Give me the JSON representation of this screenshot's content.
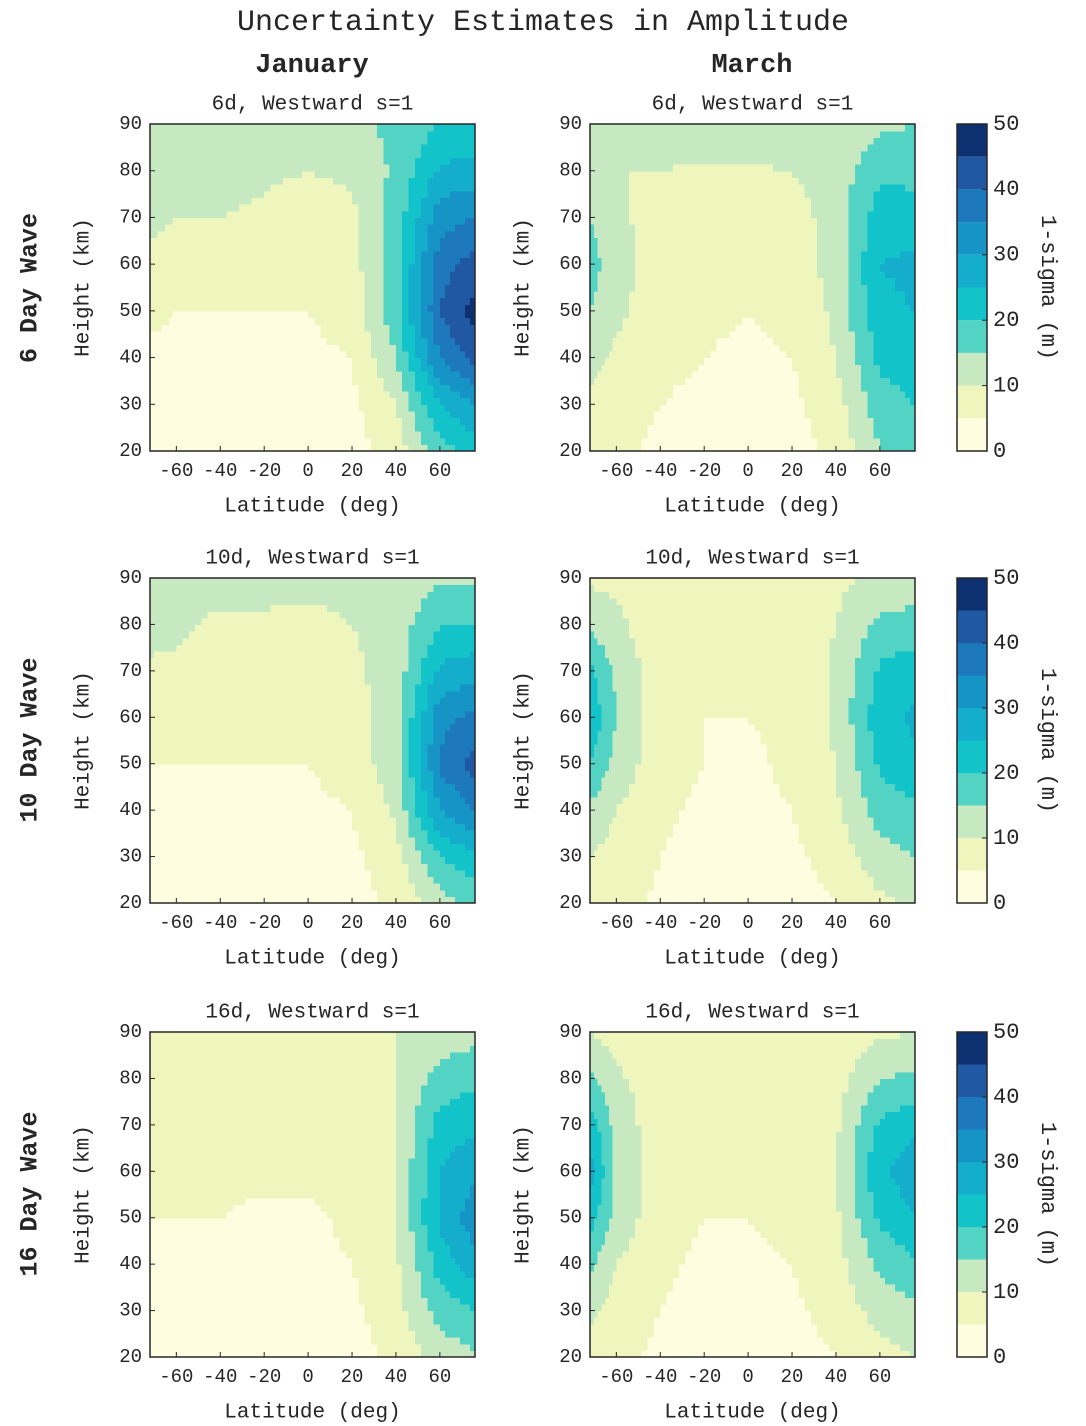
{
  "title": "Uncertainty Estimates in Amplitude",
  "column_titles": [
    "January",
    "March"
  ],
  "row_titles": [
    "6 Day Wave",
    "10 Day Wave",
    "16 Day Wave"
  ],
  "colormap": {
    "levels": [
      0,
      5,
      10,
      15,
      20,
      25,
      30,
      35,
      40,
      45,
      50
    ],
    "colors": [
      "#fefde0",
      "#eef6bd",
      "#c6e9c2",
      "#52d3c3",
      "#12c4c9",
      "#14adcc",
      "#1694c6",
      "#1e78bc",
      "#2158a4",
      "#0d3070"
    ]
  },
  "chart_data": [
    {
      "type": "contour",
      "title": "6d, Westward s=1",
      "xlabel": "Latitude (deg)",
      "ylabel": "Height (km)",
      "xlim": [
        -72,
        76
      ],
      "ylim": [
        20,
        90
      ],
      "xticks": [
        -60,
        -40,
        -20,
        0,
        20,
        40,
        60
      ],
      "yticks": [
        20,
        30,
        40,
        50,
        60,
        70,
        80,
        90
      ],
      "x": [
        -72,
        -60,
        -40,
        -20,
        0,
        20,
        40,
        60,
        76
      ],
      "y": [
        20,
        30,
        40,
        50,
        60,
        70,
        80,
        90
      ],
      "z": [
        [
          2,
          2,
          2,
          2,
          2,
          3,
          7,
          18,
          22
        ],
        [
          3,
          3,
          3,
          3,
          3,
          4,
          10,
          25,
          30
        ],
        [
          4,
          4,
          4,
          4,
          4,
          5,
          15,
          35,
          42
        ],
        [
          6,
          5,
          5,
          5,
          5,
          7,
          18,
          40,
          47
        ],
        [
          9,
          8,
          8,
          7,
          6,
          8,
          18,
          38,
          42
        ],
        [
          11,
          10,
          10,
          9,
          7,
          9,
          17,
          33,
          35
        ],
        [
          13,
          12,
          12,
          11,
          10,
          11,
          16,
          26,
          27
        ],
        [
          15,
          14,
          14,
          14,
          13,
          14,
          16,
          20,
          21
        ]
      ]
    },
    {
      "type": "contour",
      "title": "6d, Westward s=1",
      "xlabel": "Latitude (deg)",
      "ylabel": "Height (km)",
      "xlim": [
        -72,
        76
      ],
      "ylim": [
        20,
        90
      ],
      "xticks": [
        -60,
        -40,
        -20,
        0,
        20,
        40,
        60
      ],
      "yticks": [
        20,
        30,
        40,
        50,
        60,
        70,
        80,
        90
      ],
      "x": [
        -72,
        -60,
        -40,
        -20,
        0,
        20,
        40,
        60,
        76
      ],
      "y": [
        20,
        30,
        40,
        50,
        60,
        70,
        80,
        90
      ],
      "z": [
        [
          7,
          6,
          4,
          3,
          3,
          3,
          6,
          15,
          17
        ],
        [
          9,
          7,
          5,
          4,
          3,
          4,
          8,
          18,
          20
        ],
        [
          12,
          9,
          6,
          5,
          4,
          5,
          10,
          21,
          22
        ],
        [
          15,
          11,
          7,
          6,
          5,
          6,
          11,
          24,
          25
        ],
        [
          17,
          12,
          8,
          7,
          6,
          7,
          12,
          25,
          26
        ],
        [
          15,
          11,
          8,
          8,
          7,
          8,
          12,
          23,
          23
        ],
        [
          12,
          10,
          10,
          9,
          9,
          10,
          12,
          19,
          18
        ],
        [
          12,
          13,
          14,
          14,
          15,
          15,
          12,
          14,
          15
        ]
      ],
      "colorbar": {
        "label": "1-sigma (m)",
        "lim": [
          0,
          50
        ],
        "ticks": [
          0,
          10,
          20,
          30,
          40,
          50
        ]
      }
    },
    {
      "type": "contour",
      "title": "10d, Westward s=1",
      "xlabel": "Latitude (deg)",
      "ylabel": "Height (km)",
      "xlim": [
        -72,
        76
      ],
      "ylim": [
        20,
        90
      ],
      "xticks": [
        -60,
        -40,
        -20,
        0,
        20,
        40,
        60
      ],
      "yticks": [
        20,
        30,
        40,
        50,
        60,
        70,
        80,
        90
      ],
      "x": [
        -72,
        -60,
        -40,
        -20,
        0,
        20,
        40,
        60,
        76
      ],
      "y": [
        20,
        30,
        40,
        50,
        60,
        70,
        80,
        90
      ],
      "z": [
        [
          2,
          2,
          2,
          2,
          2,
          3,
          6,
          13,
          16
        ],
        [
          3,
          3,
          3,
          3,
          3,
          4,
          8,
          20,
          24
        ],
        [
          4,
          4,
          4,
          4,
          4,
          5,
          11,
          30,
          35
        ],
        [
          5,
          5,
          5,
          5,
          5,
          7,
          13,
          36,
          42
        ],
        [
          7,
          7,
          7,
          7,
          6,
          8,
          13,
          33,
          37
        ],
        [
          9,
          9,
          8,
          8,
          7,
          9,
          12,
          26,
          28
        ],
        [
          12,
          11,
          9,
          9,
          8,
          10,
          12,
          20,
          20
        ],
        [
          13,
          12,
          12,
          12,
          12,
          12,
          12,
          14,
          14
        ]
      ]
    },
    {
      "type": "contour",
      "title": "10d, Westward s=1",
      "xlabel": "Latitude (deg)",
      "ylabel": "Height (km)",
      "xlim": [
        -72,
        76
      ],
      "ylim": [
        20,
        90
      ],
      "xticks": [
        -60,
        -40,
        -20,
        0,
        20,
        40,
        60
      ],
      "yticks": [
        20,
        30,
        40,
        50,
        60,
        70,
        80,
        90
      ],
      "x": [
        -72,
        -60,
        -40,
        -20,
        0,
        20,
        40,
        60,
        76
      ],
      "y": [
        20,
        30,
        40,
        50,
        60,
        70,
        80,
        90
      ],
      "z": [
        [
          8,
          7,
          4,
          3,
          3,
          3,
          5,
          9,
          11
        ],
        [
          10,
          8,
          5,
          3,
          3,
          4,
          7,
          13,
          15
        ],
        [
          14,
          10,
          6,
          4,
          4,
          5,
          9,
          17,
          19
        ],
        [
          20,
          13,
          7,
          5,
          4,
          6,
          10,
          21,
          24
        ],
        [
          24,
          15,
          7,
          5,
          5,
          6,
          11,
          23,
          26
        ],
        [
          21,
          14,
          7,
          6,
          6,
          6,
          11,
          21,
          23
        ],
        [
          14,
          11,
          7,
          7,
          7,
          7,
          10,
          16,
          17
        ],
        [
          9,
          9,
          9,
          9,
          9,
          9,
          9,
          11,
          12
        ]
      ],
      "colorbar": {
        "label": "1-sigma (m)",
        "lim": [
          0,
          50
        ],
        "ticks": [
          0,
          10,
          20,
          30,
          40,
          50
        ]
      }
    },
    {
      "type": "contour",
      "title": "16d, Westward s=1",
      "xlabel": "Latitude (deg)",
      "ylabel": "Height (km)",
      "xlim": [
        -72,
        76
      ],
      "ylim": [
        20,
        90
      ],
      "xticks": [
        -60,
        -40,
        -20,
        0,
        20,
        40,
        60
      ],
      "yticks": [
        20,
        30,
        40,
        50,
        60,
        70,
        80,
        90
      ],
      "x": [
        -72,
        -60,
        -40,
        -20,
        0,
        20,
        40,
        60,
        76
      ],
      "y": [
        20,
        30,
        40,
        50,
        60,
        70,
        80,
        90
      ],
      "z": [
        [
          3,
          3,
          3,
          2,
          2,
          3,
          6,
          12,
          14
        ],
        [
          3,
          3,
          3,
          3,
          3,
          4,
          8,
          17,
          20
        ],
        [
          4,
          4,
          4,
          4,
          4,
          5,
          9,
          22,
          28
        ],
        [
          5,
          5,
          5,
          4,
          4,
          6,
          10,
          26,
          33
        ],
        [
          6,
          6,
          6,
          6,
          6,
          7,
          10,
          25,
          29
        ],
        [
          7,
          7,
          7,
          7,
          7,
          8,
          10,
          22,
          24
        ],
        [
          8,
          8,
          8,
          8,
          8,
          9,
          10,
          17,
          19
        ],
        [
          9,
          9,
          9,
          9,
          9,
          10,
          10,
          12,
          13
        ]
      ]
    },
    {
      "type": "contour",
      "title": "16d, Westward s=1",
      "xlabel": "Latitude (deg)",
      "ylabel": "Height (km)",
      "xlim": [
        -72,
        76
      ],
      "ylim": [
        20,
        90
      ],
      "xticks": [
        -60,
        -40,
        -20,
        0,
        20,
        40,
        60
      ],
      "yticks": [
        20,
        30,
        40,
        50,
        60,
        70,
        80,
        90
      ],
      "x": [
        -72,
        -60,
        -40,
        -20,
        0,
        20,
        40,
        60,
        76
      ],
      "y": [
        20,
        30,
        40,
        50,
        60,
        70,
        80,
        90
      ],
      "z": [
        [
          8,
          6,
          4,
          3,
          3,
          3,
          5,
          8,
          10
        ],
        [
          11,
          8,
          5,
          3,
          3,
          4,
          7,
          12,
          14
        ],
        [
          16,
          10,
          6,
          4,
          4,
          5,
          8,
          16,
          19
        ],
        [
          22,
          13,
          7,
          5,
          5,
          6,
          9,
          21,
          25
        ],
        [
          27,
          14,
          7,
          5,
          6,
          6,
          10,
          24,
          28
        ],
        [
          23,
          13,
          7,
          6,
          6,
          6,
          9,
          21,
          24
        ],
        [
          16,
          11,
          7,
          6,
          6,
          6,
          8,
          15,
          16
        ],
        [
          10,
          8,
          6,
          5,
          5,
          6,
          6,
          9,
          10
        ]
      ],
      "colorbar": {
        "label": "1-sigma (m)",
        "lim": [
          0,
          50
        ],
        "ticks": [
          0,
          10,
          20,
          30,
          40,
          50
        ]
      }
    }
  ]
}
